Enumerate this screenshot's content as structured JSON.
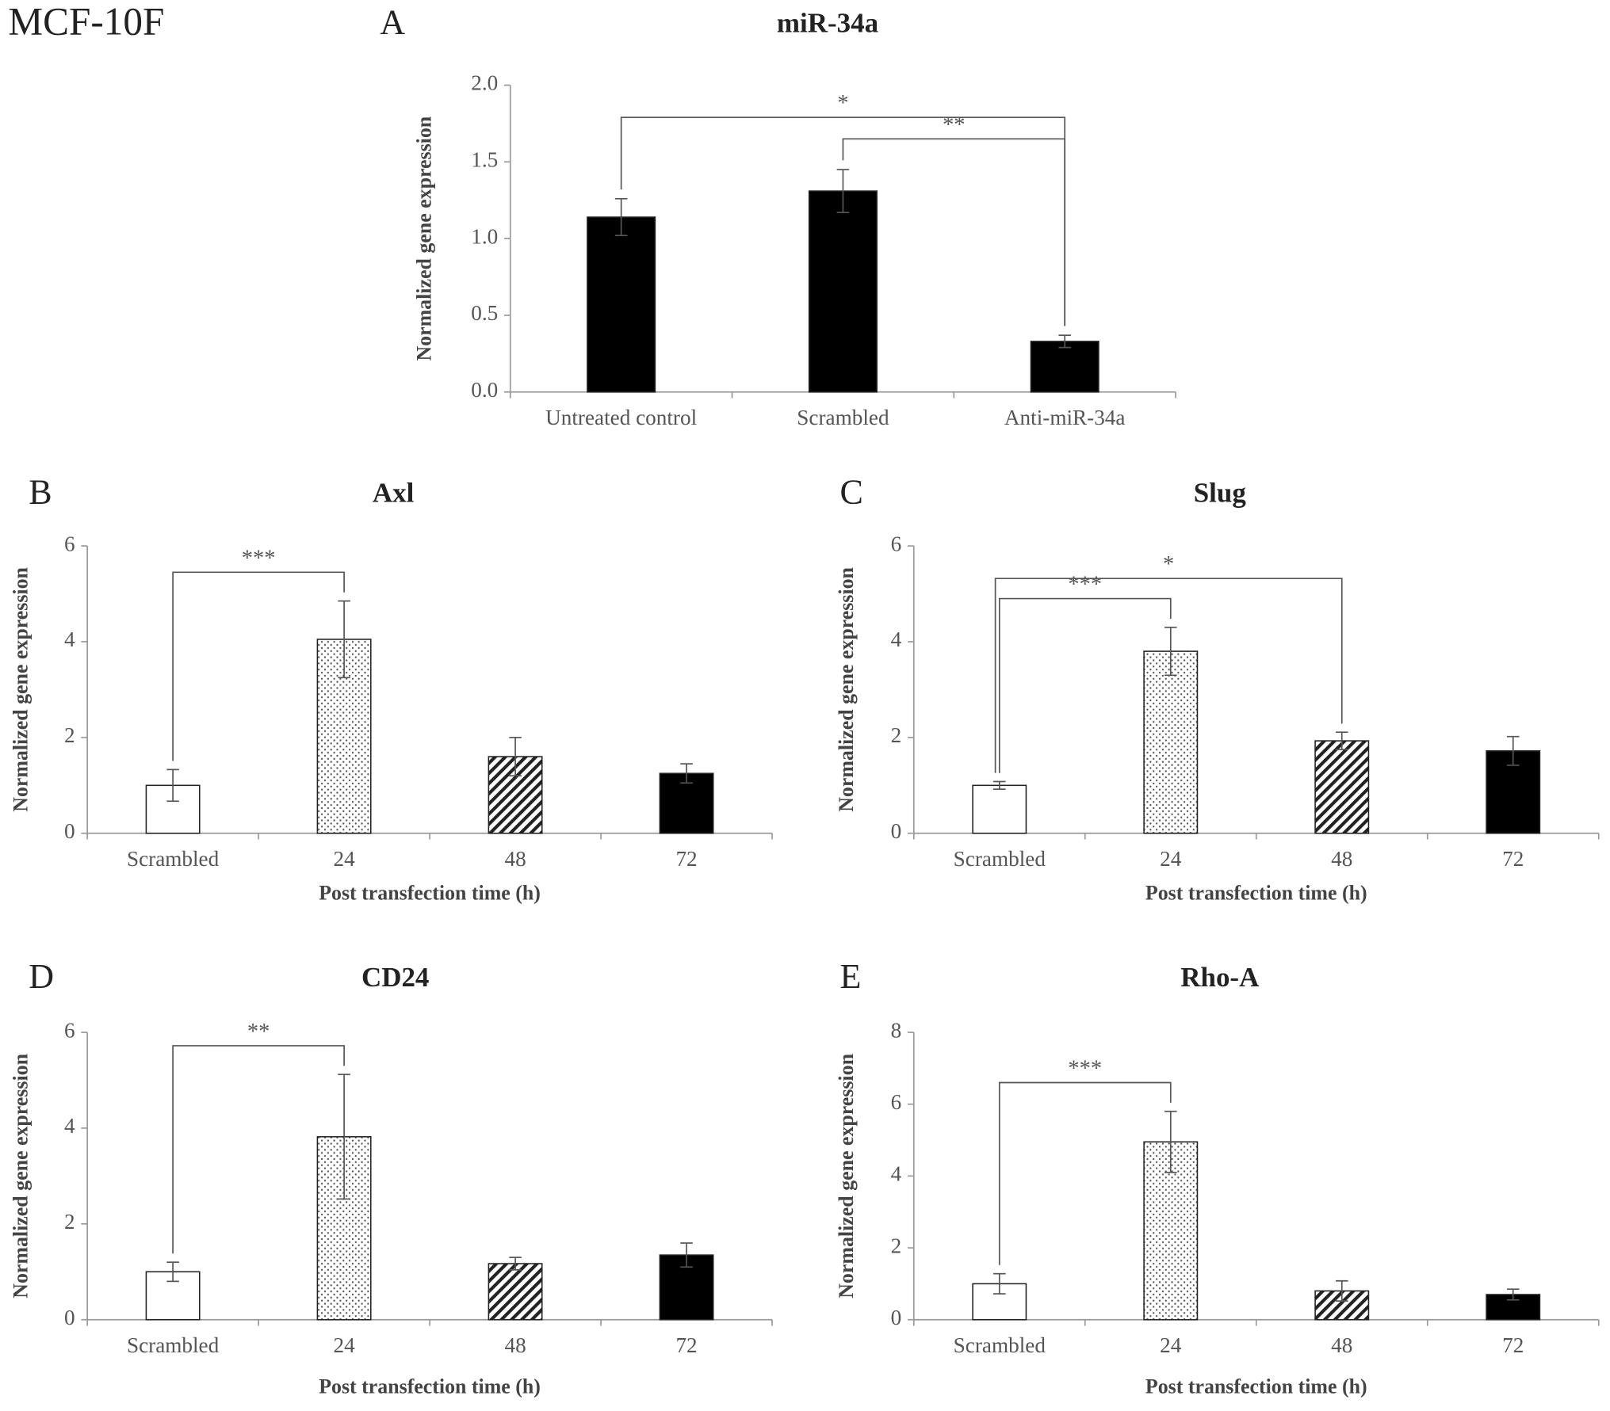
{
  "figure_label": "MCF-10F",
  "chart_data": [
    {
      "type": "bar",
      "panel": "A",
      "title": "miR-34a",
      "y_label": "Normalized gene expression",
      "categories": [
        "Untreated control",
        "Scrambled",
        "Anti-miR-34a"
      ],
      "values": [
        1.14,
        1.31,
        0.33
      ],
      "errors": [
        0.12,
        0.14,
        0.04
      ],
      "color": "#000000",
      "ylim": [
        0,
        2
      ],
      "yticks": [
        {
          "value": 0,
          "label": "0.0"
        },
        0.5,
        {
          "value": 1,
          "label": "1.0"
        },
        1.5,
        {
          "value": 2,
          "label": "2.0"
        }
      ],
      "brackets": [
        {
          "from": 0,
          "to": 2,
          "label": "*"
        },
        {
          "from": 1,
          "to": 2,
          "label": "**"
        }
      ]
    },
    {
      "type": "bar",
      "panel": "B",
      "title": "Axl",
      "y_label": "Normalized gene expression",
      "x_label": "Post transfection time (h)",
      "categories": [
        "Scrambled",
        "24",
        "48",
        "72"
      ],
      "values": [
        1.0,
        4.05,
        1.6,
        1.25
      ],
      "errors": [
        0.33,
        0.8,
        0.4,
        0.2
      ],
      "patterns": [
        "white",
        "dots",
        "hatch",
        "black"
      ],
      "ylim": [
        0,
        6
      ],
      "yticks": [
        0,
        2,
        4,
        6
      ],
      "brackets": [
        {
          "from": 0,
          "to": 1,
          "label": "***"
        }
      ]
    },
    {
      "type": "bar",
      "panel": "C",
      "title": "Slug",
      "y_label": "Normalized gene expression",
      "x_label": "Post transfection time (h)",
      "categories": [
        "Scrambled",
        "24",
        "48",
        "72"
      ],
      "values": [
        1.0,
        3.8,
        1.93,
        1.72
      ],
      "errors": [
        0.08,
        0.5,
        0.18,
        0.3
      ],
      "patterns": [
        "white",
        "dots",
        "hatch",
        "black"
      ],
      "ylim": [
        0,
        6
      ],
      "yticks": [
        0,
        2,
        4,
        6
      ],
      "brackets": [
        {
          "from": 0,
          "to": 2,
          "label": "*"
        },
        {
          "from": 0,
          "to": 1,
          "label": "***"
        }
      ]
    },
    {
      "type": "bar",
      "panel": "D",
      "title": "CD24",
      "y_label": "Normalized gene expression",
      "x_label": "Post transfection time (h)",
      "categories": [
        "Scrambled",
        "24",
        "48",
        "72"
      ],
      "values": [
        1.0,
        3.82,
        1.17,
        1.35
      ],
      "errors": [
        0.2,
        1.3,
        0.13,
        0.25
      ],
      "patterns": [
        "white",
        "dots",
        "hatch",
        "black"
      ],
      "ylim": [
        0,
        6
      ],
      "yticks": [
        0,
        2,
        4,
        6
      ],
      "brackets": [
        {
          "from": 0,
          "to": 1,
          "label": "**"
        }
      ]
    },
    {
      "type": "bar",
      "panel": "E",
      "title": "Rho-A",
      "y_label": "Normalized gene expression",
      "x_label": "Post transfection time (h)",
      "categories": [
        "Scrambled",
        "24",
        "48",
        "72"
      ],
      "values": [
        1.0,
        4.95,
        0.8,
        0.7
      ],
      "errors": [
        0.28,
        0.85,
        0.28,
        0.15
      ],
      "patterns": [
        "white",
        "dots",
        "hatch",
        "black"
      ],
      "ylim": [
        0,
        8
      ],
      "yticks": [
        0,
        2,
        4,
        6,
        8
      ],
      "brackets": [
        {
          "from": 0,
          "to": 1,
          "label": "***"
        }
      ]
    }
  ]
}
